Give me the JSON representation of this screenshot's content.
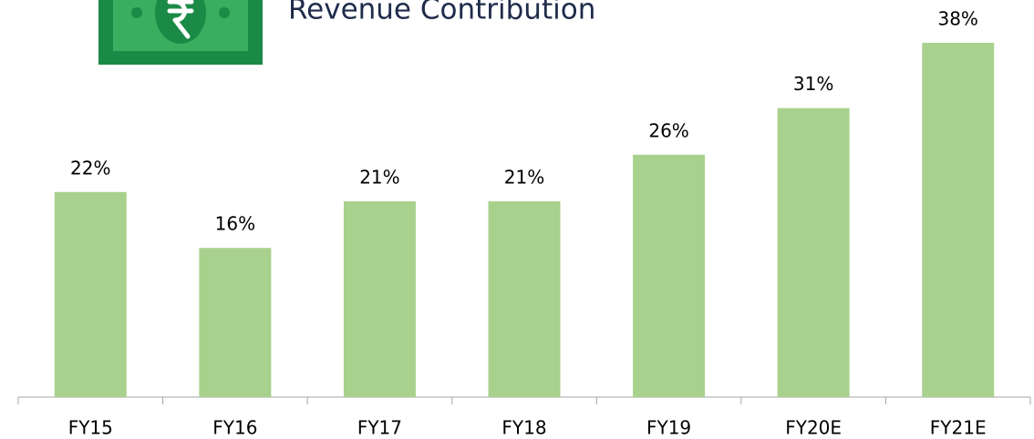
{
  "chart_data": {
    "type": "bar",
    "title": "Revenue Contribution",
    "categories": [
      "FY15",
      "FY16",
      "FY17",
      "FY18",
      "FY19",
      "FY20E",
      "FY21E"
    ],
    "values": [
      22,
      16,
      21,
      21,
      26,
      31,
      38
    ],
    "value_labels": [
      "22%",
      "16%",
      "21%",
      "21%",
      "26%",
      "31%",
      "38%"
    ],
    "color": "#a9d18e"
  }
}
